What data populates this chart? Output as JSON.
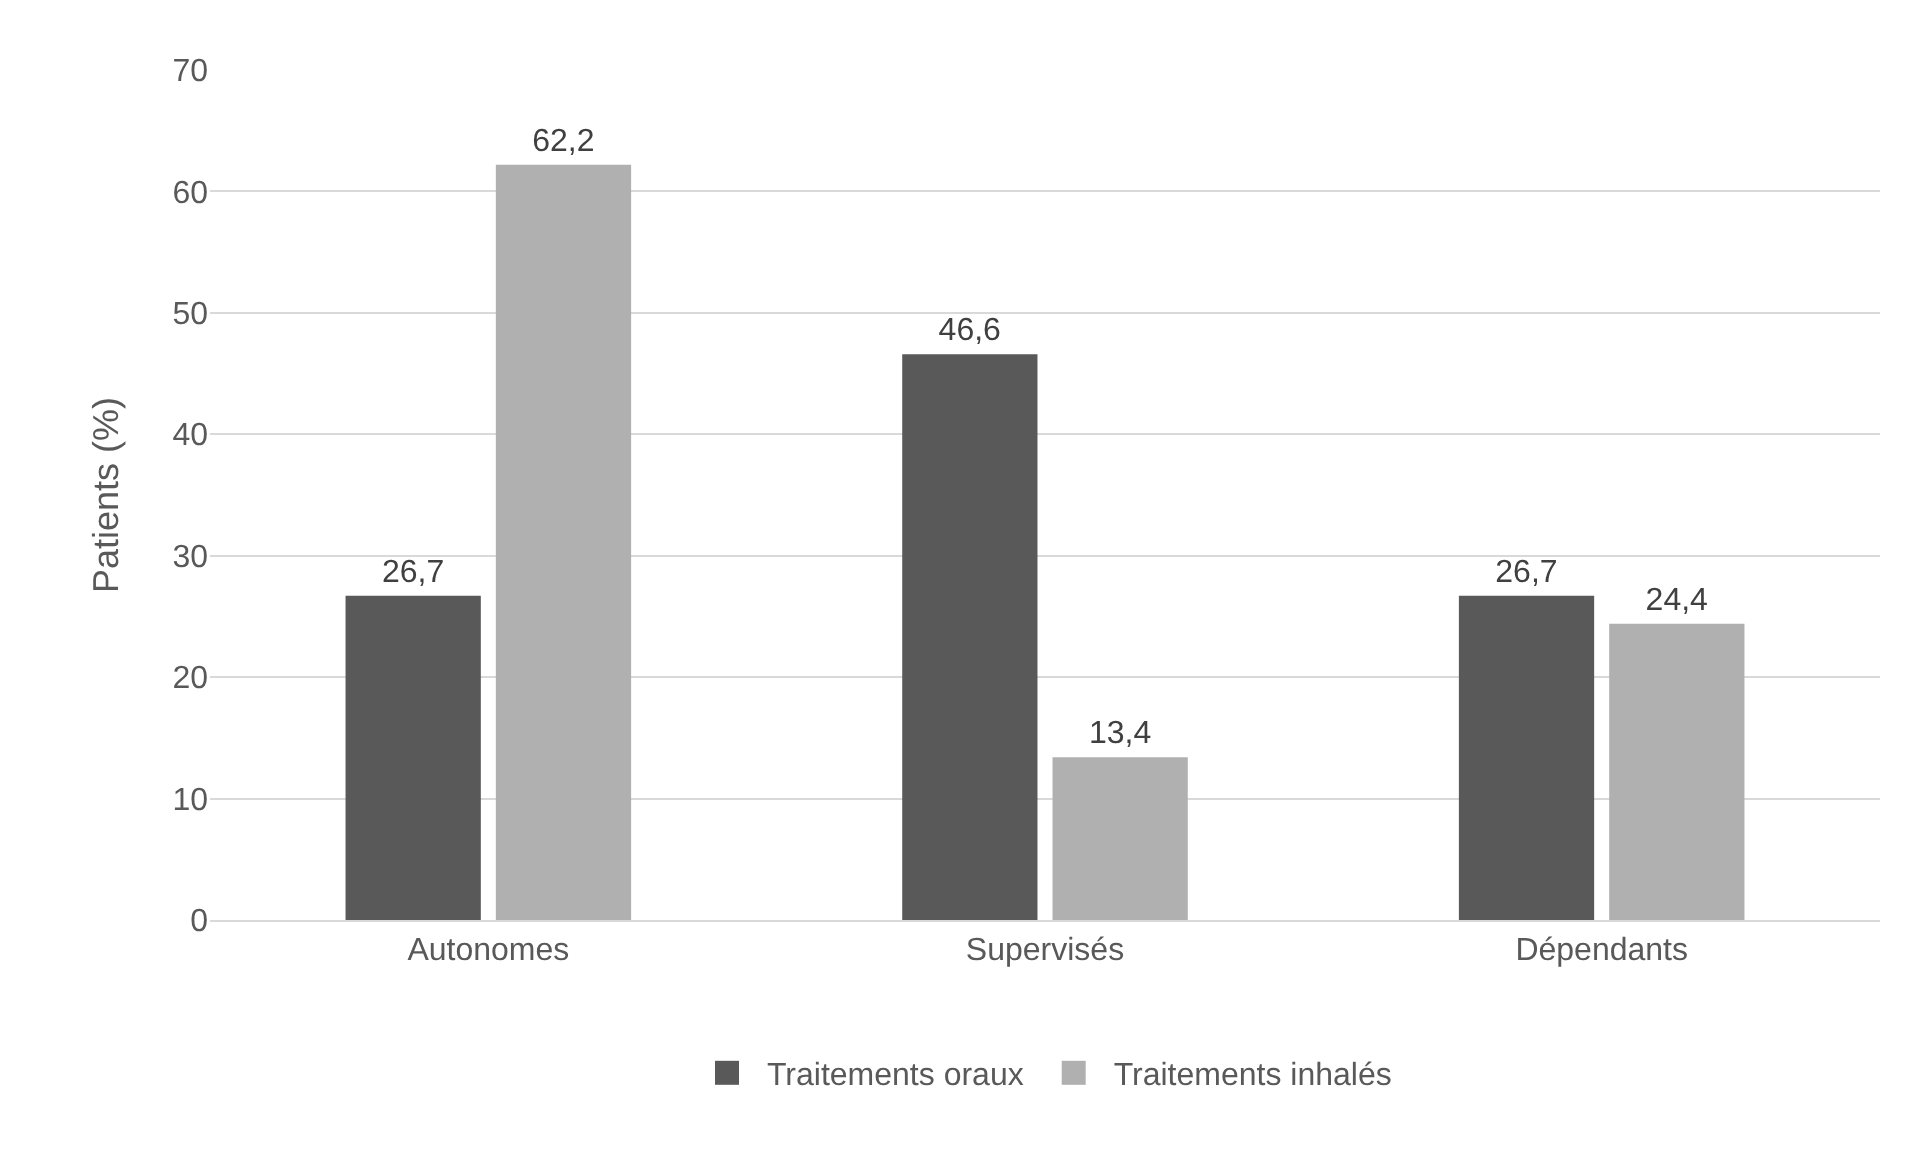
{
  "chart_data": {
    "type": "bar",
    "ylabel": "Patients (%)",
    "categories": [
      "Autonomes",
      "Supervisés",
      "Dépendants"
    ],
    "series": [
      {
        "name": "Traitements oraux",
        "color": "#595959",
        "values": [
          26.7,
          46.6,
          26.7
        ],
        "value_labels": [
          "26,7",
          "46,6",
          "26,7"
        ]
      },
      {
        "name": "Traitements inhalés",
        "color": "#b0b0b0",
        "values": [
          62.2,
          13.4,
          24.4
        ],
        "value_labels": [
          "62,2",
          "13,4",
          "24,4"
        ]
      }
    ],
    "ylim": [
      0,
      70
    ],
    "yticks": [
      0,
      10,
      20,
      30,
      40,
      50,
      60,
      70
    ],
    "grid": "y",
    "legend": "bottom"
  }
}
